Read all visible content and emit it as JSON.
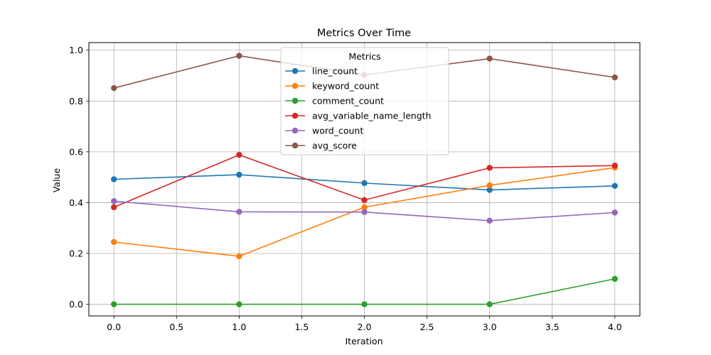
{
  "chart_data": {
    "type": "line",
    "title": "Metrics Over Time",
    "xlabel": "Iteration",
    "ylabel": "Value",
    "xlim": [
      -0.2,
      4.2
    ],
    "ylim": [
      -0.046,
      1.03
    ],
    "x_ticks": [
      0.0,
      0.5,
      1.0,
      1.5,
      2.0,
      2.5,
      3.0,
      3.5,
      4.0
    ],
    "x_tick_labels": [
      "0.0",
      "0.5",
      "1.0",
      "1.5",
      "2.0",
      "2.5",
      "3.0",
      "3.5",
      "4.0"
    ],
    "y_ticks": [
      0.0,
      0.2,
      0.4,
      0.6,
      0.8,
      1.0
    ],
    "y_tick_labels": [
      "0.0",
      "0.2",
      "0.4",
      "0.6",
      "0.8",
      "1.0"
    ],
    "grid": true,
    "legend_title": "Metrics",
    "legend_position": "top-center",
    "x": [
      0,
      1,
      2,
      3,
      4
    ],
    "series": [
      {
        "name": "line_count",
        "color": "#1f77b4",
        "values": [
          0.492,
          0.51,
          0.477,
          0.45,
          0.466
        ]
      },
      {
        "name": "keyword_count",
        "color": "#ff7f0e",
        "values": [
          0.245,
          0.189,
          0.382,
          0.468,
          0.538
        ]
      },
      {
        "name": "comment_count",
        "color": "#2ca02c",
        "values": [
          0.0,
          0.0,
          0.0,
          0.0,
          0.1
        ]
      },
      {
        "name": "avg_variable_name_length",
        "color": "#d62728",
        "values": [
          0.382,
          0.588,
          0.41,
          0.537,
          0.546
        ]
      },
      {
        "name": "word_count",
        "color": "#9467bd",
        "values": [
          0.406,
          0.364,
          0.363,
          0.329,
          0.361
        ]
      },
      {
        "name": "avg_score",
        "color": "#8c564b",
        "values": [
          0.851,
          0.978,
          0.903,
          0.967,
          0.893
        ]
      }
    ]
  }
}
